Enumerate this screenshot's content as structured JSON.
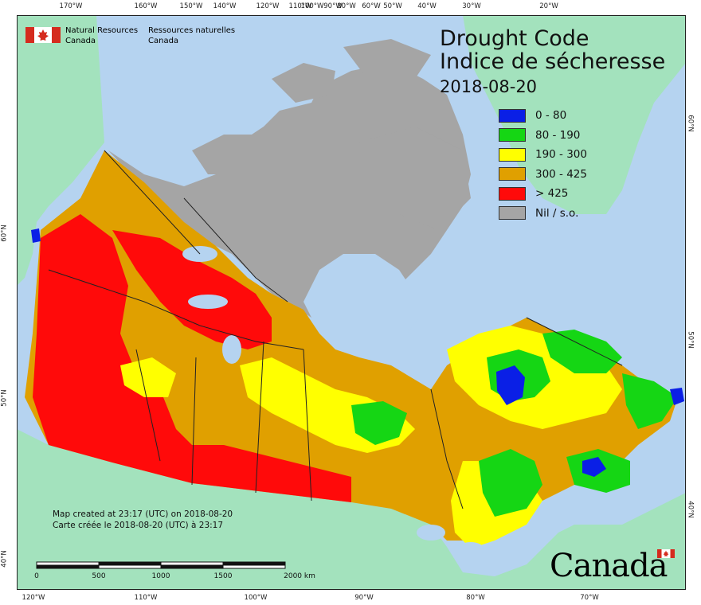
{
  "map": {
    "title_en": "Drought Code",
    "title_fr": "Indice de sécheresse",
    "date": "2018-08-20",
    "agency": {
      "en_line1": "Natural Resources",
      "en_line2": "Canada",
      "fr_line1": "Ressources naturelles",
      "fr_line2": "Canada"
    },
    "created_en": "Map created at 23:17 (UTC) on 2018-08-20",
    "created_fr": "Carte créée le 2018-08-20 (UTC) à 23:17",
    "wordmark": "Canada",
    "colors": {
      "water": "#b5d3f0",
      "foreign_land": "#a3e2bd",
      "nil": "#a5a5a5",
      "border": "#222222"
    },
    "legend": [
      {
        "label": "0 - 80",
        "color": "#0a1fe6"
      },
      {
        "label": "80 - 190",
        "color": "#15d614"
      },
      {
        "label": "190 - 300",
        "color": "#ffff00"
      },
      {
        "label": "300 - 425",
        "color": "#e0a000"
      },
      {
        "label": "> 425",
        "color": "#ff0a0a"
      },
      {
        "label": "Nil / s.o.",
        "color": "#a5a5a5"
      }
    ],
    "scale": {
      "labels": [
        "0",
        "500",
        "1000",
        "1500",
        "2000 km"
      ]
    },
    "top_ticks": [
      "170°W",
      "160°W",
      "150°W",
      "140°W",
      "120°W",
      "110°W",
      "100°W",
      "90°W",
      "80°W",
      "60°W",
      "50°W",
      "40°W",
      "30°W",
      "20°W"
    ],
    "bottom_ticks": [
      "120°W",
      "110°W",
      "100°W",
      "90°W",
      "80°W",
      "70°W"
    ],
    "left_ticks": [
      "60°N",
      "50°N",
      "40°N"
    ],
    "right_ticks": [
      "60°N",
      "50°N",
      "40°N"
    ]
  }
}
